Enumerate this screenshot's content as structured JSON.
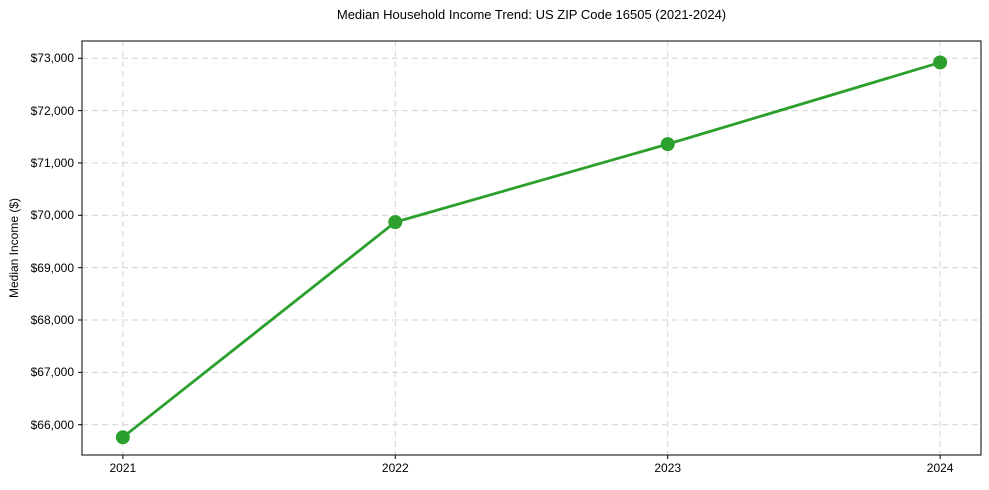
{
  "chart_data": {
    "type": "line",
    "title": "Median Household Income Trend: US ZIP Code 16505 (2021-2024)",
    "xlabel": "",
    "ylabel": "Median Income ($)",
    "x": [
      2021,
      2022,
      2023,
      2024
    ],
    "xtick_labels": [
      "2021",
      "2022",
      "2023",
      "2024"
    ],
    "y": [
      65760,
      69870,
      71360,
      72920
    ],
    "yticks": [
      66000,
      67000,
      68000,
      69000,
      70000,
      71000,
      72000,
      73000
    ],
    "ytick_labels": [
      "$66,000",
      "$67,000",
      "$68,000",
      "$69,000",
      "$70,000",
      "$71,000",
      "$72,000",
      "$73,000"
    ],
    "xlim": [
      2020.85,
      2024.15
    ],
    "ylim": [
      65421,
      73330
    ],
    "grid": true,
    "grid_style": "dashed",
    "legend": false,
    "marker": "circle",
    "line_color": "#2ca02c",
    "grid_color": "#d4d4d4",
    "axis_color": "#000000",
    "text_color": "#000000",
    "background": "#ffffff"
  }
}
